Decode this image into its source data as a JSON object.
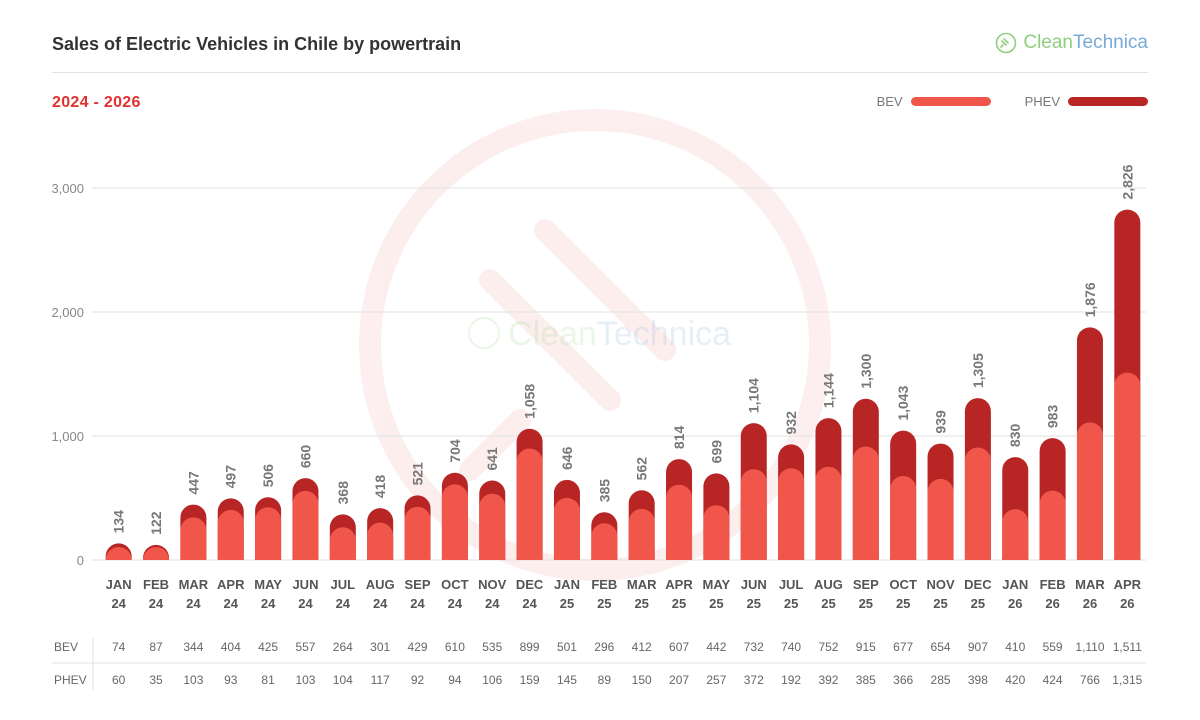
{
  "header": {
    "title": "Sales of Electric Vehicles in Chile by powertrain",
    "subtitle": "2024 - 2026",
    "logo_text_clean": "Clean",
    "logo_text_tech": "Technica"
  },
  "watermark": {
    "clean": "Clean",
    "tech": "Technica"
  },
  "colors": {
    "bev": "#f0574a",
    "phev": "#b82525",
    "accent": "#e0312f"
  },
  "chart_data": {
    "type": "bar",
    "stacked": true,
    "title": "Sales of Electric Vehicles in Chile by powertrain",
    "subtitle": "2024 - 2026",
    "categories": [
      "JAN 24",
      "FEB 24",
      "MAR 24",
      "APR 24",
      "MAY 24",
      "JUN 24",
      "JUL 24",
      "AUG 24",
      "SEP 24",
      "OCT 24",
      "NOV 24",
      "DEC 24",
      "JAN 25",
      "FEB 25",
      "MAR 25",
      "APR 25",
      "MAY 25",
      "JUN 25",
      "JUL 25",
      "AUG 25",
      "SEP 25",
      "OCT 25",
      "NOV 25",
      "DEC 25",
      "JAN 26",
      "FEB 26",
      "MAR 26",
      "APR 26"
    ],
    "category_lines": [
      [
        "JAN",
        "24"
      ],
      [
        "FEB",
        "24"
      ],
      [
        "MAR",
        "24"
      ],
      [
        "APR",
        "24"
      ],
      [
        "MAY",
        "24"
      ],
      [
        "JUN",
        "24"
      ],
      [
        "JUL",
        "24"
      ],
      [
        "AUG",
        "24"
      ],
      [
        "SEP",
        "24"
      ],
      [
        "OCT",
        "24"
      ],
      [
        "NOV",
        "24"
      ],
      [
        "DEC",
        "24"
      ],
      [
        "JAN",
        "25"
      ],
      [
        "FEB",
        "25"
      ],
      [
        "MAR",
        "25"
      ],
      [
        "APR",
        "25"
      ],
      [
        "MAY",
        "25"
      ],
      [
        "JUN",
        "25"
      ],
      [
        "JUL",
        "25"
      ],
      [
        "AUG",
        "25"
      ],
      [
        "SEP",
        "25"
      ],
      [
        "OCT",
        "25"
      ],
      [
        "NOV",
        "25"
      ],
      [
        "DEC",
        "25"
      ],
      [
        "JAN",
        "26"
      ],
      [
        "FEB",
        "26"
      ],
      [
        "MAR",
        "26"
      ],
      [
        "APR",
        "26"
      ]
    ],
    "series": [
      {
        "name": "BEV",
        "values": [
          74,
          87,
          344,
          404,
          425,
          557,
          264,
          301,
          429,
          610,
          535,
          899,
          501,
          296,
          412,
          607,
          442,
          732,
          740,
          752,
          915,
          677,
          654,
          907,
          410,
          559,
          1110,
          1511
        ]
      },
      {
        "name": "PHEV",
        "values": [
          60,
          35,
          103,
          93,
          81,
          103,
          104,
          117,
          92,
          94,
          106,
          159,
          145,
          89,
          150,
          207,
          257,
          372,
          192,
          392,
          385,
          366,
          285,
          398,
          420,
          424,
          766,
          1315
        ]
      }
    ],
    "totals": [
      134,
      122,
      447,
      497,
      506,
      660,
      368,
      418,
      521,
      704,
      641,
      1058,
      646,
      385,
      562,
      814,
      699,
      1104,
      932,
      1144,
      1300,
      1043,
      939,
      1305,
      830,
      983,
      1876,
      2826
    ],
    "y_ticks": [
      0,
      1000,
      2000,
      3000
    ],
    "y_tick_labels": [
      "0",
      "1,000",
      "2,000",
      "3,000"
    ],
    "ylim": [
      0,
      3300
    ],
    "grid": true,
    "legend_position": "top-right"
  }
}
